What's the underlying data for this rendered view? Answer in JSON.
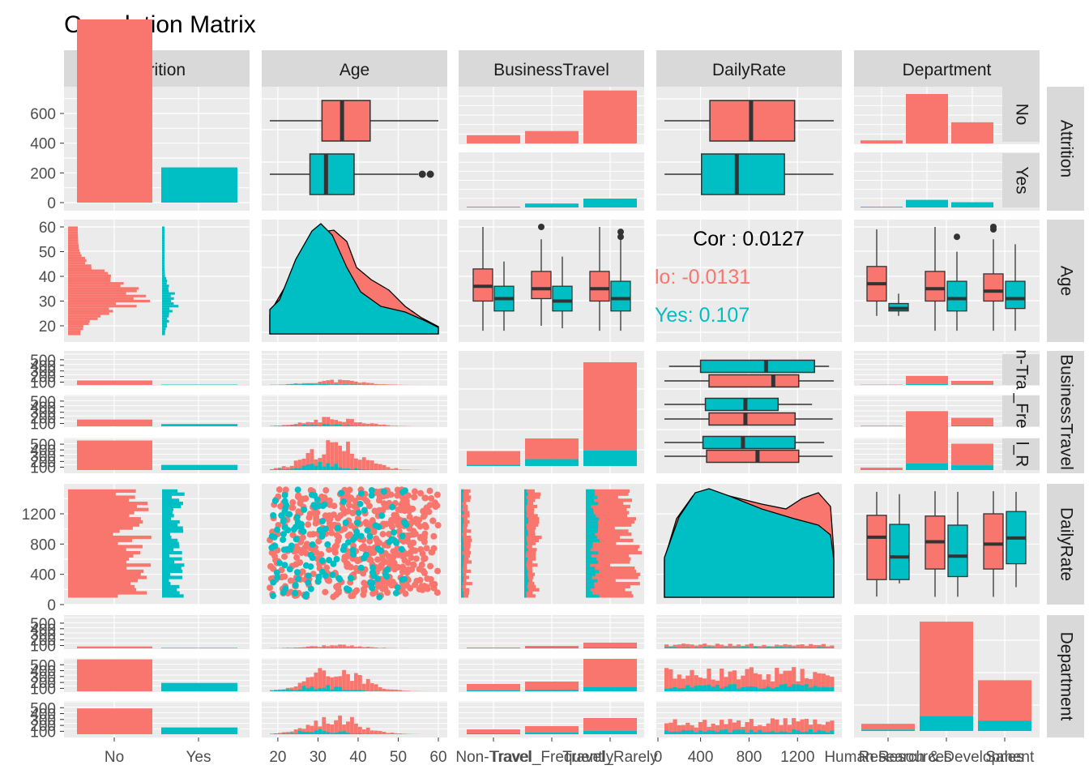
{
  "title": "Correlation Matrix",
  "colors": {
    "No": "#F8766D",
    "Yes": "#00BFC4",
    "panel": "#EBEBEB",
    "strip": "#D9D9D9",
    "grid": "#FFFFFF",
    "text": "#1A1A1A",
    "tick": "#4D4D4D"
  },
  "columns": [
    "Attrition",
    "Age",
    "BusinessTravel",
    "DailyRate",
    "Department"
  ],
  "rows": [
    "Attrition",
    "Age",
    "BusinessTravel",
    "DailyRate",
    "Department"
  ],
  "sub_strips": {
    "Attrition": [
      "No",
      "Yes"
    ],
    "BusinessTravel": [
      "n-Tra",
      "_Fre",
      "l_R"
    ]
  },
  "x_ticks": {
    "Attrition": [
      "No",
      "Yes"
    ],
    "Age": [
      "20",
      "30",
      "40",
      "50",
      "60"
    ],
    "BusinessTravel": [
      "Non-Travel",
      "Travel_Frequently",
      "Travel_Rarely"
    ],
    "DailyRate": [
      "0",
      "400",
      "800",
      "1200"
    ],
    "Department": [
      "Human Resources",
      "Research & Development",
      "Sales"
    ]
  },
  "y_ticks": {
    "Attrition": [
      "0",
      "200",
      "400",
      "600"
    ],
    "Age": [
      "20",
      "30",
      "40",
      "50",
      "60"
    ],
    "BusinessTravel": [
      "100",
      "200",
      "300",
      "400",
      "500"
    ],
    "DailyRate": [
      "0",
      "400",
      "800",
      "1200"
    ],
    "Department": [
      "100",
      "200",
      "300",
      "400",
      "500"
    ]
  },
  "correlation": {
    "overall": "Cor : 0.0127",
    "No": "lo: -0.0131",
    "Yes": "Yes: 0.107"
  },
  "chart_data": {
    "type": "pairs",
    "title": "Correlation Matrix",
    "variables": [
      "Attrition",
      "Age",
      "BusinessTravel",
      "DailyRate",
      "Department"
    ],
    "groups": [
      "No",
      "Yes"
    ],
    "attrition_counts": {
      "No": 1233,
      "Yes": 237
    },
    "attrition_ylim": [
      0,
      700
    ],
    "businesstravel_counts": {
      "categories": [
        "Non-Travel",
        "Travel_Frequently",
        "Travel_Rarely"
      ],
      "series": [
        {
          "name": "No",
          "values": [
            138,
            208,
            887
          ]
        },
        {
          "name": "Yes",
          "values": [
            12,
            69,
            156
          ]
        }
      ]
    },
    "department_counts": {
      "categories": [
        "Human Resources",
        "Research & Development",
        "Sales"
      ],
      "series": [
        {
          "name": "No",
          "values": [
            51,
            828,
            354
          ]
        },
        {
          "name": "Yes",
          "values": [
            12,
            133,
            92
          ]
        }
      ]
    },
    "age_boxplot": {
      "No": {
        "min": 18,
        "q1": 31,
        "median": 36,
        "q3": 43,
        "max": 60,
        "outliers": []
      },
      "Yes": {
        "min": 18,
        "q1": 28,
        "median": 32,
        "q3": 39,
        "max": 55,
        "outliers": [
          56,
          58
        ]
      }
    },
    "dailyrate_boxplot": {
      "No": {
        "min": 102,
        "q1": 477,
        "median": 817,
        "q3": 1176,
        "max": 1499,
        "outliers": []
      },
      "Yes": {
        "min": 103,
        "q1": 408,
        "median": 699,
        "q3": 1092,
        "max": 1496,
        "outliers": []
      }
    },
    "correlation": {
      "overall": 0.0127,
      "No": -0.0131,
      "Yes": 0.107
    },
    "age_range": [
      18,
      60
    ],
    "dailyrate_range": [
      102,
      1499
    ]
  }
}
